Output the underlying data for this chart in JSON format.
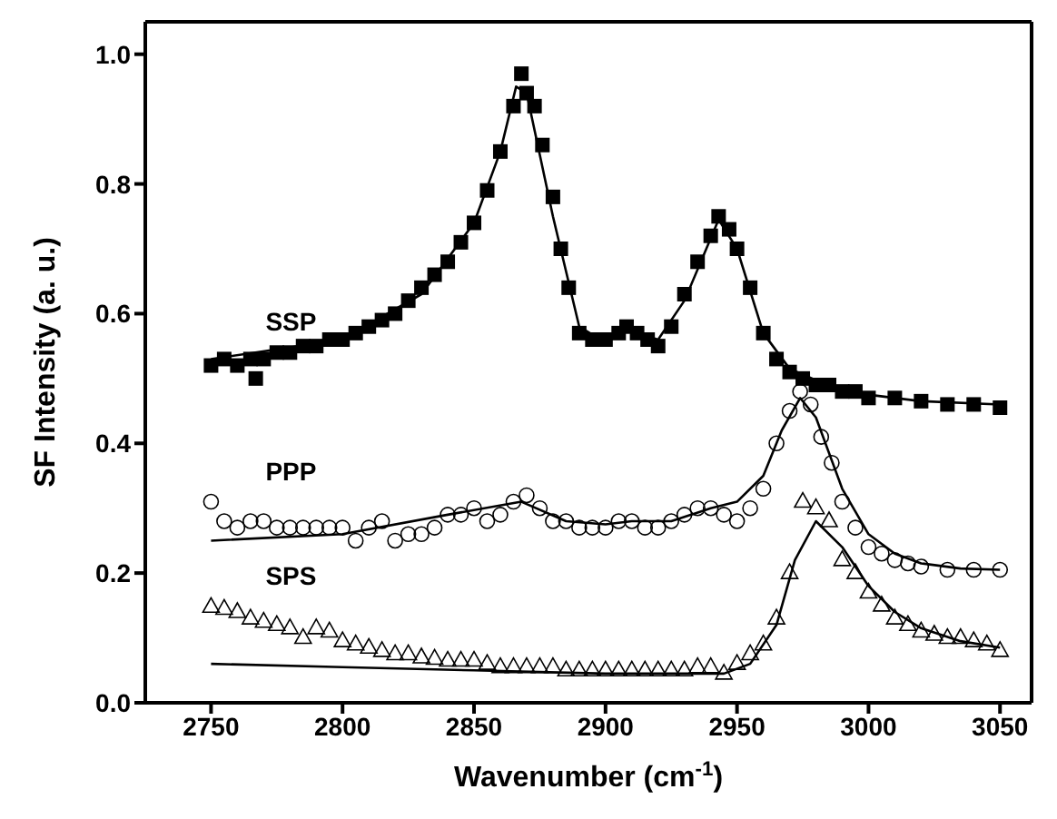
{
  "chart_data": {
    "type": "scatter",
    "xlabel": "Wavenumber (cm$^{-1}$)",
    "ylabel": "SF Intensity (a. u.)",
    "xlim": [
      2725,
      3062
    ],
    "xticks": [
      2750,
      2800,
      2850,
      2900,
      2950,
      3000,
      3050
    ],
    "ylim": [
      0,
      1.05
    ],
    "yticks": [
      {
        "value": 0,
        "label": "0.0"
      },
      {
        "value": 0.2,
        "label": "0.2"
      },
      {
        "value": 0.4,
        "label": "0.4"
      },
      {
        "value": 0.6,
        "label": "0.6"
      },
      {
        "value": 0.8,
        "label": "0.8"
      },
      {
        "value": 1,
        "label": "1.0"
      }
    ],
    "series": [
      {
        "name": "SSP",
        "color": "#000000",
        "marker": "square",
        "x": [
          2750,
          2755,
          2760,
          2765,
          2767,
          2770,
          2775,
          2780,
          2785,
          2790,
          2795,
          2800,
          2805,
          2810,
          2815,
          2820,
          2825,
          2830,
          2835,
          2840,
          2845,
          2850,
          2855,
          2860,
          2865,
          2868,
          2870,
          2873,
          2876,
          2880,
          2883,
          2886,
          2890,
          2895,
          2900,
          2905,
          2908,
          2912,
          2916,
          2920,
          2925,
          2930,
          2935,
          2940,
          2943,
          2947,
          2950,
          2955,
          2960,
          2965,
          2970,
          2975,
          2980,
          2985,
          2990,
          2995,
          3000,
          3010,
          3020,
          3030,
          3040,
          3050
        ],
        "values": [
          0.52,
          0.53,
          0.52,
          0.53,
          0.5,
          0.53,
          0.54,
          0.54,
          0.55,
          0.55,
          0.56,
          0.56,
          0.57,
          0.58,
          0.59,
          0.6,
          0.62,
          0.64,
          0.66,
          0.68,
          0.71,
          0.74,
          0.79,
          0.85,
          0.92,
          0.97,
          0.94,
          0.92,
          0.86,
          0.78,
          0.7,
          0.64,
          0.57,
          0.56,
          0.56,
          0.57,
          0.58,
          0.57,
          0.56,
          0.55,
          0.58,
          0.63,
          0.68,
          0.72,
          0.75,
          0.73,
          0.7,
          0.64,
          0.57,
          0.53,
          0.51,
          0.5,
          0.49,
          0.49,
          0.48,
          0.48,
          0.47,
          0.47,
          0.465,
          0.46,
          0.46,
          0.455
        ]
      },
      {
        "name": "PPP",
        "color": "#000000",
        "marker": "circle",
        "x": [
          2750,
          2755,
          2760,
          2765,
          2770,
          2775,
          2780,
          2785,
          2790,
          2795,
          2800,
          2805,
          2810,
          2815,
          2820,
          2825,
          2830,
          2835,
          2840,
          2845,
          2850,
          2855,
          2860,
          2865,
          2870,
          2875,
          2880,
          2885,
          2890,
          2895,
          2900,
          2905,
          2910,
          2915,
          2920,
          2925,
          2930,
          2935,
          2940,
          2945,
          2950,
          2955,
          2960,
          2965,
          2970,
          2974,
          2978,
          2982,
          2986,
          2990,
          2995,
          3000,
          3005,
          3010,
          3015,
          3020,
          3030,
          3040,
          3050
        ],
        "values": [
          0.31,
          0.28,
          0.27,
          0.28,
          0.28,
          0.27,
          0.27,
          0.27,
          0.27,
          0.27,
          0.27,
          0.25,
          0.27,
          0.28,
          0.25,
          0.26,
          0.26,
          0.27,
          0.29,
          0.29,
          0.3,
          0.28,
          0.29,
          0.31,
          0.32,
          0.3,
          0.28,
          0.28,
          0.27,
          0.27,
          0.27,
          0.28,
          0.28,
          0.27,
          0.27,
          0.28,
          0.29,
          0.3,
          0.3,
          0.29,
          0.28,
          0.3,
          0.33,
          0.4,
          0.45,
          0.48,
          0.46,
          0.41,
          0.37,
          0.31,
          0.27,
          0.24,
          0.23,
          0.22,
          0.215,
          0.21,
          0.205,
          0.205,
          0.205
        ]
      },
      {
        "name": "SPS",
        "color": "#000000",
        "marker": "triangle",
        "x": [
          2750,
          2755,
          2760,
          2765,
          2770,
          2775,
          2780,
          2785,
          2790,
          2795,
          2800,
          2805,
          2810,
          2815,
          2820,
          2825,
          2830,
          2835,
          2840,
          2845,
          2850,
          2855,
          2860,
          2865,
          2870,
          2875,
          2880,
          2885,
          2890,
          2895,
          2900,
          2905,
          2910,
          2915,
          2920,
          2925,
          2930,
          2935,
          2940,
          2945,
          2950,
          2955,
          2960,
          2965,
          2970,
          2975,
          2980,
          2985,
          2990,
          2995,
          3000,
          3005,
          3010,
          3015,
          3020,
          3025,
          3030,
          3035,
          3040,
          3045,
          3050
        ],
        "values": [
          0.148,
          0.145,
          0.14,
          0.13,
          0.125,
          0.12,
          0.115,
          0.1,
          0.115,
          0.11,
          0.095,
          0.09,
          0.085,
          0.08,
          0.075,
          0.075,
          0.07,
          0.068,
          0.065,
          0.065,
          0.065,
          0.06,
          0.055,
          0.055,
          0.055,
          0.055,
          0.055,
          0.05,
          0.05,
          0.05,
          0.05,
          0.05,
          0.05,
          0.05,
          0.05,
          0.05,
          0.05,
          0.055,
          0.055,
          0.045,
          0.06,
          0.075,
          0.09,
          0.13,
          0.2,
          0.31,
          0.3,
          0.28,
          0.22,
          0.2,
          0.17,
          0.15,
          0.13,
          0.12,
          0.11,
          0.105,
          0.1,
          0.1,
          0.095,
          0.09,
          0.08
        ]
      },
      {
        "type": "line",
        "color": "#000000",
        "x": [
          2750,
          2800,
          2830,
          2850,
          2860,
          2866,
          2870,
          2880,
          2890,
          2900,
          2908,
          2920,
          2930,
          2943,
          2950,
          2960,
          2970,
          2990,
          3020,
          3050
        ],
        "values": [
          0.53,
          0.56,
          0.63,
          0.74,
          0.85,
          0.95,
          0.94,
          0.75,
          0.58,
          0.555,
          0.575,
          0.56,
          0.62,
          0.745,
          0.7,
          0.57,
          0.515,
          0.48,
          0.465,
          0.46
        ]
      },
      {
        "type": "line",
        "color": "#000000",
        "x": [
          2750,
          2800,
          2840,
          2868,
          2885,
          2900,
          2910,
          2925,
          2940,
          2950,
          2960,
          2967,
          2974,
          2980,
          2990,
          3000,
          3010,
          3020,
          3035,
          3050
        ],
        "values": [
          0.25,
          0.26,
          0.29,
          0.31,
          0.28,
          0.275,
          0.28,
          0.28,
          0.3,
          0.31,
          0.35,
          0.42,
          0.47,
          0.44,
          0.33,
          0.26,
          0.23,
          0.215,
          0.207,
          0.205
        ]
      },
      {
        "type": "line",
        "color": "#000000",
        "x": [
          2750,
          2800,
          2850,
          2900,
          2945,
          2955,
          2965,
          2972,
          2980,
          2990,
          3000,
          3010,
          3020,
          3035,
          3050
        ],
        "values": [
          0.06,
          0.055,
          0.05,
          0.045,
          0.045,
          0.06,
          0.12,
          0.22,
          0.28,
          0.24,
          0.18,
          0.14,
          0.115,
          0.095,
          0.085
        ]
      }
    ]
  }
}
